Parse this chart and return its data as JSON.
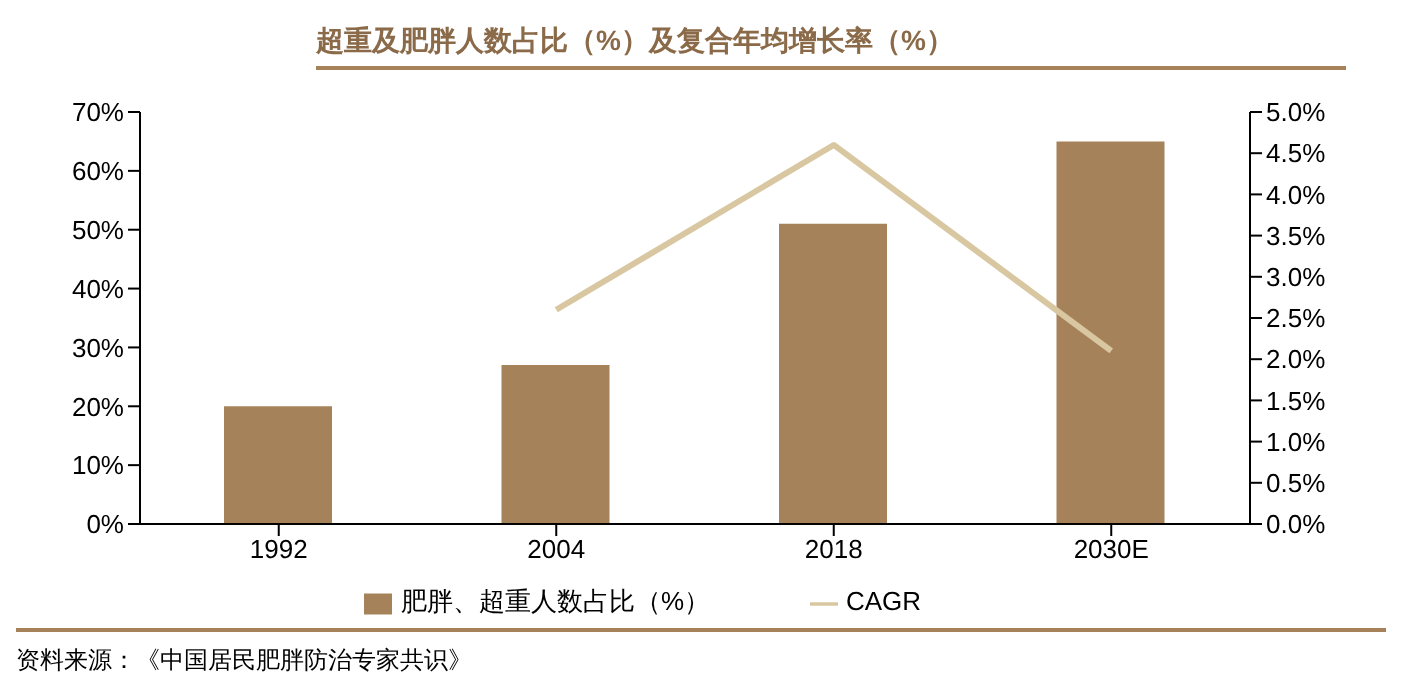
{
  "chart_data": {
    "type": "bar",
    "title": "超重及肥胖人数占比（%）及复合年均增长率（%）",
    "categories": [
      "1992",
      "2004",
      "2018",
      "2030E"
    ],
    "series": [
      {
        "name": "肥胖、超重人数占比（%）",
        "color": "#a6825a",
        "values": [
          20,
          27,
          51,
          65
        ]
      },
      {
        "name": "CAGR",
        "type": "line",
        "axis": "y2",
        "color": "#d8c7a0",
        "values": [
          null,
          2.6,
          4.6,
          2.1
        ]
      }
    ],
    "ylim": [
      0,
      70
    ],
    "yticks": [
      {
        "value": 0,
        "label": "0%"
      },
      {
        "value": 10,
        "label": "10%"
      },
      {
        "value": 20,
        "label": "20%"
      },
      {
        "value": 30,
        "label": "30%"
      },
      {
        "value": 40,
        "label": "40%"
      },
      {
        "value": 50,
        "label": "50%"
      },
      {
        "value": 60,
        "label": "60%"
      },
      {
        "value": 70,
        "label": "70%"
      }
    ],
    "y2lim": [
      0,
      5
    ],
    "y2ticks": [
      {
        "value": 0,
        "label": "0.0%"
      },
      {
        "value": 0.5,
        "label": "0.5%"
      },
      {
        "value": 1,
        "label": "1.0%"
      },
      {
        "value": 1.5,
        "label": "1.5%"
      },
      {
        "value": 2,
        "label": "2.0%"
      },
      {
        "value": 2.5,
        "label": "2.5%"
      },
      {
        "value": 3,
        "label": "3.0%"
      },
      {
        "value": 3.5,
        "label": "3.5%"
      },
      {
        "value": 4,
        "label": "4.0%"
      },
      {
        "value": 4.5,
        "label": "4.5%"
      },
      {
        "value": 5,
        "label": "5.0%"
      }
    ],
    "legend": "bottom",
    "grid": false,
    "marker": "none",
    "annotations": [
      "资料来源：《中国居民肥胖防治专家共识》"
    ]
  }
}
